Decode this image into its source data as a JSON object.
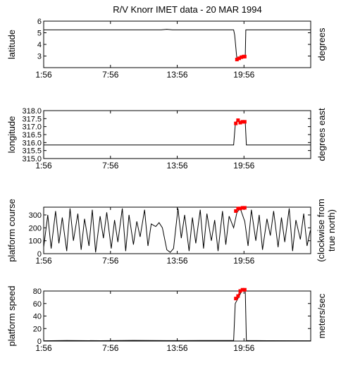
{
  "title": "R/V Knorr IMET data - 20 MAR 1994",
  "x_ticks": [
    "1:56",
    "7:56",
    "13:56",
    "19:56"
  ],
  "colors": {
    "line": "#000000",
    "highlight": "#ff0000",
    "background": "#ffffff"
  },
  "chart_data": [
    {
      "type": "line",
      "ylabel": "latitude",
      "ylabel_right": "degrees",
      "ylim": [
        2,
        6
      ],
      "yticks": [
        "6",
        "5",
        "4",
        "3"
      ],
      "ytick_values": [
        6,
        5,
        4,
        3
      ],
      "grid": false,
      "series": [
        {
          "x": [
            1.93,
            12.5,
            13.0,
            13.5,
            19.0,
            19.1,
            19.3,
            19.6,
            19.7,
            19.8,
            20.05,
            20.1,
            25.9
          ],
          "values": [
            5.25,
            5.25,
            5.3,
            5.25,
            5.25,
            4.8,
            2.7,
            2.7,
            2.9,
            2.95,
            2.95,
            5.25,
            5.25
          ]
        }
      ],
      "highlight": {
        "x": [
          19.3,
          19.5,
          19.7,
          19.9,
          20.0
        ],
        "values": [
          2.7,
          2.8,
          2.9,
          2.95,
          2.95
        ]
      }
    },
    {
      "type": "line",
      "ylabel": "longitude",
      "ylabel_right": "degrees east",
      "ylim": [
        315.0,
        318.0
      ],
      "yticks": [
        "318.0",
        "317.5",
        "317.0",
        "316.5",
        "316.0",
        "315.5",
        "315.0"
      ],
      "ytick_values": [
        318.0,
        317.5,
        317.0,
        316.5,
        316.0,
        315.5,
        315.0
      ],
      "grid": false,
      "series": [
        {
          "x": [
            1.93,
            19.0,
            19.15,
            19.3,
            19.6,
            19.75,
            19.9,
            20.05,
            20.15,
            25.9
          ],
          "values": [
            315.85,
            315.85,
            317.1,
            317.4,
            317.2,
            317.3,
            317.3,
            317.3,
            315.85,
            315.85
          ]
        }
      ],
      "highlight": {
        "x": [
          19.2,
          19.4,
          19.6,
          19.8,
          20.0
        ],
        "values": [
          317.2,
          317.4,
          317.25,
          317.3,
          317.3
        ]
      }
    },
    {
      "type": "line",
      "ylabel": "platform course",
      "ylabel_right": "(clockwise from true north)",
      "ylim": [
        0,
        360
      ],
      "yticks": [
        "300",
        "200",
        "100",
        "0"
      ],
      "ytick_values": [
        300,
        200,
        100,
        0
      ],
      "grid": false,
      "series": [
        {
          "x": [
            1.93,
            2.3,
            2.6,
            3.0,
            3.3,
            3.6,
            4.0,
            4.3,
            4.6,
            5.0,
            5.3,
            5.6,
            6.0,
            6.3,
            6.6,
            7.0,
            7.3,
            7.6,
            8.0,
            8.3,
            8.6,
            9.0,
            9.3,
            9.6,
            10.0,
            10.3,
            10.6,
            11.0,
            11.3,
            11.6,
            12.0,
            12.3,
            12.6,
            13.0,
            13.3,
            13.6,
            14.0,
            14.3,
            14.6,
            15.0,
            15.3,
            15.6,
            16.0,
            16.3,
            16.6,
            17.0,
            17.3,
            17.6,
            18.0,
            18.3,
            18.6,
            19.0,
            19.3,
            19.6,
            20.0,
            20.3,
            20.6,
            21.0,
            21.3,
            21.6,
            22.0,
            22.3,
            22.6,
            23.0,
            23.3,
            23.6,
            24.0,
            24.3,
            24.6,
            25.0,
            25.3,
            25.6,
            25.9
          ],
          "values": [
            50,
            300,
            40,
            330,
            80,
            280,
            20,
            350,
            100,
            310,
            30,
            270,
            60,
            340,
            10,
            290,
            120,
            320,
            40,
            260,
            90,
            350,
            20,
            300,
            70,
            250,
            130,
            340,
            60,
            230,
            210,
            240,
            200,
            30,
            10,
            40,
            350,
            120,
            300,
            20,
            280,
            80,
            340,
            40,
            310,
            100,
            260,
            20,
            330,
            70,
            290,
            200,
            320,
            350,
            250,
            60,
            340,
            100,
            300,
            30,
            270,
            140,
            330,
            50,
            280,
            90,
            350,
            20,
            260,
            110,
            310,
            60,
            180
          ]
        }
      ],
      "highlight": {
        "x": [
          19.2,
          19.4,
          19.6,
          19.8,
          20.0
        ],
        "values": [
          330,
          350,
          350,
          355,
          355
        ]
      }
    },
    {
      "type": "line",
      "ylabel": "platform speed",
      "ylabel_right": "meters/sec",
      "ylim": [
        0,
        80
      ],
      "yticks": [
        "80",
        "60",
        "40",
        "20",
        "0"
      ],
      "ytick_values": [
        80,
        60,
        40,
        20,
        0
      ],
      "grid": false,
      "series": [
        {
          "x": [
            1.93,
            4.0,
            7.0,
            10.0,
            13.0,
            16.0,
            19.0,
            19.15,
            19.3,
            19.6,
            19.75,
            19.9,
            20.05,
            20.15,
            22.0,
            25.9
          ],
          "values": [
            0.5,
            0.8,
            0.6,
            1.0,
            0.7,
            0.9,
            0.8,
            60,
            65,
            75,
            82,
            82,
            82,
            0.8,
            0.6,
            0.5
          ]
        }
      ],
      "highlight": {
        "x": [
          19.2,
          19.4,
          19.6,
          19.8,
          20.0
        ],
        "values": [
          68,
          72,
          80,
          82,
          82
        ]
      }
    }
  ]
}
